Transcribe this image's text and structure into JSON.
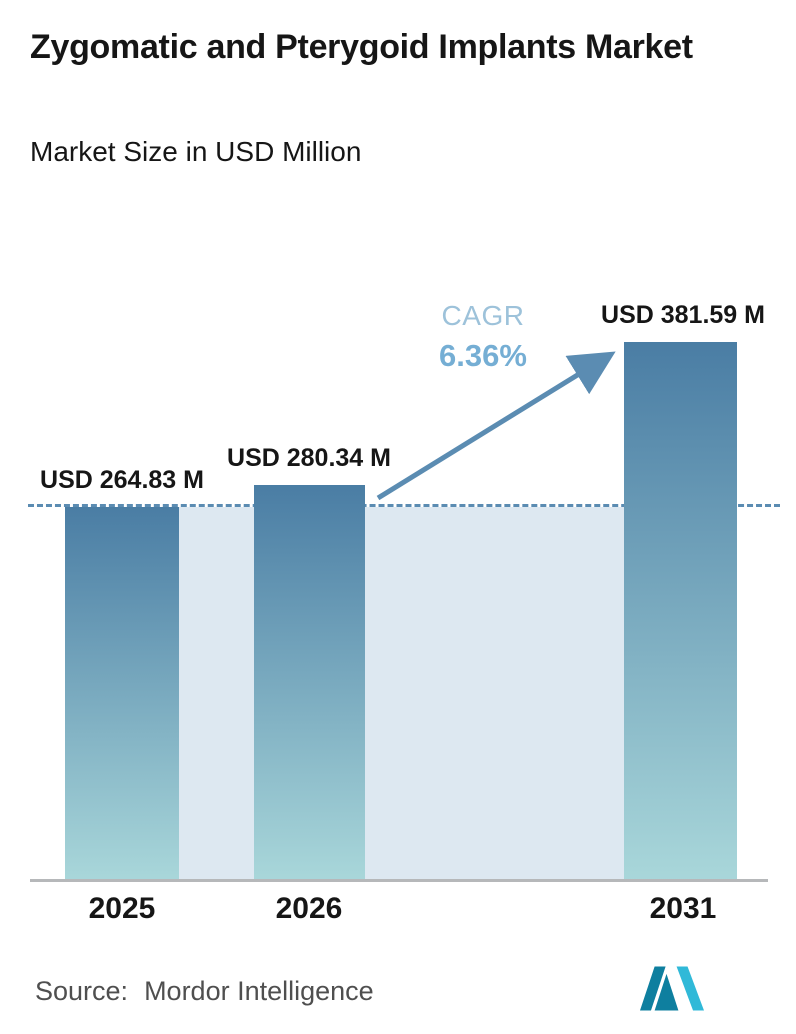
{
  "header": {
    "title": "Zygomatic and Pterygoid Implants Market",
    "subtitle": "Market Size in USD Million"
  },
  "chart_data": {
    "type": "bar",
    "title": "Zygomatic and Pterygoid Implants Market",
    "subtitle": "Market Size in USD Million",
    "categories": [
      "2025",
      "2026",
      "2031"
    ],
    "values": [
      264.83,
      280.34,
      381.59
    ],
    "value_labels": [
      "USD 264.83 M",
      "USD 280.34 M",
      "USD 381.59 M"
    ],
    "ylabel": "Market Size (USD Million)",
    "ylim": [
      0,
      420
    ],
    "gridlines": false,
    "legend": "none",
    "reference_line": {
      "value": 264.83,
      "style": "dashed"
    },
    "annotations": {
      "cagr_label": "CAGR",
      "cagr_value": "6.36%"
    }
  },
  "annotation": {
    "cagr_label": "CAGR",
    "cagr_value": "6.36%"
  },
  "footer": {
    "source_label": "Source:",
    "source_value": "Mordor Intelligence",
    "logo": "mordor-intelligence-logo"
  },
  "colors": {
    "accent": "#5b8cb2",
    "bar_top": "#4a7da4",
    "bar_bottom": "#a9d7da",
    "shade": "#dde8f1",
    "cagr_label": "#9dc2da",
    "cagr_value": "#75aed4",
    "axis": "#b6b8ba",
    "text_dark": "#161616",
    "source_text": "#4f4f4f",
    "logo_dark": "#0e7f9f",
    "logo_light": "#30b9d8"
  }
}
